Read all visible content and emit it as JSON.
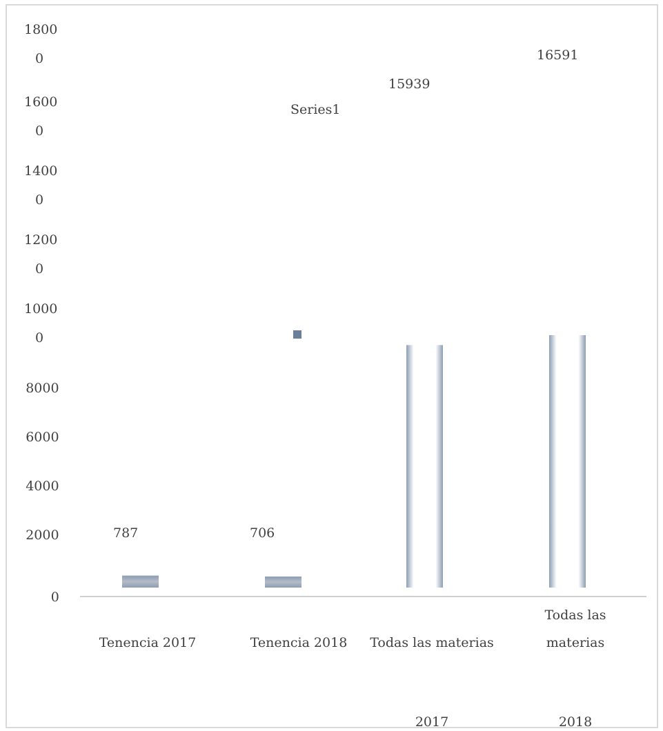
{
  "chart_data": {
    "type": "bar",
    "categories": [
      [
        "Tenencia 2017"
      ],
      [
        "Tenencia 2018"
      ],
      [
        "Todas las materias",
        "",
        "2017"
      ],
      [
        "Todas las",
        "materias",
        "2018"
      ]
    ],
    "values": [
      787,
      706,
      15939,
      16591
    ],
    "data_labels": [
      "787",
      "706",
      "15939",
      "16591"
    ],
    "ylim": [
      0,
      18000
    ],
    "yticks": [
      0,
      2000,
      4000,
      6000,
      8000,
      10000,
      12000,
      14000,
      16000,
      18000
    ],
    "ytick_labels": [
      [
        "0"
      ],
      [
        "2000"
      ],
      [
        "4000"
      ],
      [
        "6000"
      ],
      [
        "8000"
      ],
      [
        "1000",
        "0"
      ],
      [
        "1200",
        "0"
      ],
      [
        "1400",
        "0"
      ],
      [
        "1600",
        "0"
      ],
      [
        "1800",
        "0"
      ]
    ],
    "legend": {
      "label": "Series1",
      "placement": "top-center"
    },
    "grid": false,
    "colors": {
      "bar_edge": "#8c9db3",
      "bar_center": "#ffffff",
      "small_bar_center": "#b4bcc6",
      "legend_marker": "#6a7f99",
      "axis": "#bfbfbf"
    }
  }
}
